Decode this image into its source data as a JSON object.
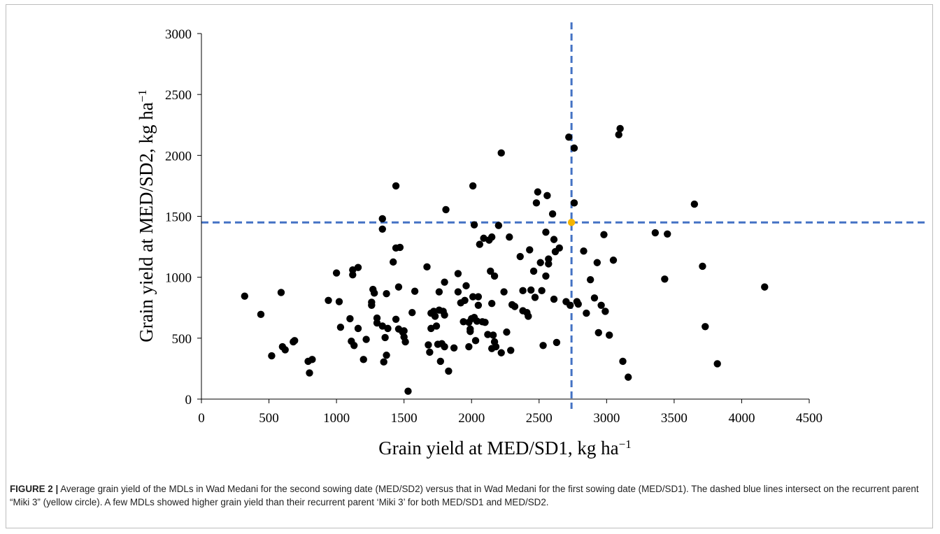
{
  "chart_data": {
    "type": "scatter",
    "xlabel_main": "Grain yield at MED/SD1, kg ha",
    "xlabel_sup": "−1",
    "ylabel_main": "Grain yield at MED/SD2, kg ha",
    "ylabel_sup": "−1",
    "xlim": [
      0,
      4500
    ],
    "ylim": [
      0,
      3000
    ],
    "xticks": [
      "0",
      "500",
      "1000",
      "1500",
      "2000",
      "2500",
      "3000",
      "3500",
      "4000",
      "4500"
    ],
    "yticks": [
      "0",
      "500",
      "1000",
      "1500",
      "2000",
      "2500",
      "3000"
    ],
    "grid": false,
    "reference_lines": {
      "x": 2740,
      "y": 1450,
      "color": "#4472c4",
      "style": "dashed"
    },
    "highlight_point": {
      "x": 2740,
      "y": 1450,
      "color": "#f4b400",
      "label": "Miki 3"
    },
    "marker_color": "#000000",
    "points": [
      [
        320,
        845
      ],
      [
        440,
        695
      ],
      [
        520,
        355
      ],
      [
        590,
        875
      ],
      [
        600,
        430
      ],
      [
        620,
        405
      ],
      [
        680,
        470
      ],
      [
        690,
        480
      ],
      [
        790,
        310
      ],
      [
        800,
        215
      ],
      [
        820,
        325
      ],
      [
        940,
        810
      ],
      [
        1000,
        1035
      ],
      [
        1020,
        800
      ],
      [
        1030,
        590
      ],
      [
        1100,
        660
      ],
      [
        1110,
        475
      ],
      [
        1120,
        1060
      ],
      [
        1120,
        1020
      ],
      [
        1130,
        440
      ],
      [
        1160,
        1080
      ],
      [
        1160,
        580
      ],
      [
        1200,
        325
      ],
      [
        1220,
        490
      ],
      [
        1260,
        770
      ],
      [
        1260,
        795
      ],
      [
        1270,
        900
      ],
      [
        1280,
        870
      ],
      [
        1300,
        665
      ],
      [
        1300,
        625
      ],
      [
        1340,
        600
      ],
      [
        1340,
        1395
      ],
      [
        1340,
        1480
      ],
      [
        1350,
        305
      ],
      [
        1360,
        505
      ],
      [
        1370,
        360
      ],
      [
        1370,
        865
      ],
      [
        1380,
        580
      ],
      [
        1420,
        1125
      ],
      [
        1440,
        1750
      ],
      [
        1440,
        1240
      ],
      [
        1440,
        655
      ],
      [
        1460,
        920
      ],
      [
        1460,
        575
      ],
      [
        1470,
        1245
      ],
      [
        1490,
        550
      ],
      [
        1500,
        560
      ],
      [
        1500,
        510
      ],
      [
        1510,
        470
      ],
      [
        1530,
        65
      ],
      [
        1560,
        710
      ],
      [
        1580,
        885
      ],
      [
        1670,
        1085
      ],
      [
        1680,
        445
      ],
      [
        1690,
        385
      ],
      [
        1700,
        705
      ],
      [
        1700,
        580
      ],
      [
        1720,
        720
      ],
      [
        1730,
        680
      ],
      [
        1740,
        600
      ],
      [
        1750,
        450
      ],
      [
        1760,
        880
      ],
      [
        1760,
        730
      ],
      [
        1770,
        310
      ],
      [
        1780,
        455
      ],
      [
        1790,
        720
      ],
      [
        1800,
        960
      ],
      [
        1800,
        690
      ],
      [
        1800,
        430
      ],
      [
        1810,
        1555
      ],
      [
        1830,
        230
      ],
      [
        1870,
        420
      ],
      [
        1900,
        1030
      ],
      [
        1900,
        880
      ],
      [
        1920,
        790
      ],
      [
        1940,
        635
      ],
      [
        1950,
        810
      ],
      [
        1960,
        930
      ],
      [
        1980,
        630
      ],
      [
        1980,
        430
      ],
      [
        1990,
        575
      ],
      [
        1990,
        555
      ],
      [
        2000,
        660
      ],
      [
        2010,
        1750
      ],
      [
        2010,
        840
      ],
      [
        2020,
        1430
      ],
      [
        2020,
        670
      ],
      [
        2030,
        480
      ],
      [
        2040,
        640
      ],
      [
        2050,
        840
      ],
      [
        2050,
        770
      ],
      [
        2060,
        1270
      ],
      [
        2080,
        635
      ],
      [
        2090,
        1320
      ],
      [
        2100,
        630
      ],
      [
        2120,
        530
      ],
      [
        2130,
        1305
      ],
      [
        2140,
        1050
      ],
      [
        2150,
        1330
      ],
      [
        2150,
        785
      ],
      [
        2150,
        415
      ],
      [
        2160,
        525
      ],
      [
        2170,
        1010
      ],
      [
        2170,
        470
      ],
      [
        2180,
        430
      ],
      [
        2200,
        1425
      ],
      [
        2220,
        2020
      ],
      [
        2220,
        380
      ],
      [
        2240,
        880
      ],
      [
        2260,
        550
      ],
      [
        2280,
        1330
      ],
      [
        2290,
        400
      ],
      [
        2300,
        775
      ],
      [
        2320,
        760
      ],
      [
        2360,
        1170
      ],
      [
        2380,
        890
      ],
      [
        2380,
        725
      ],
      [
        2410,
        710
      ],
      [
        2420,
        680
      ],
      [
        2430,
        1225
      ],
      [
        2440,
        895
      ],
      [
        2460,
        1050
      ],
      [
        2470,
        835
      ],
      [
        2480,
        1610
      ],
      [
        2490,
        1700
      ],
      [
        2510,
        1120
      ],
      [
        2520,
        890
      ],
      [
        2530,
        440
      ],
      [
        2550,
        1370
      ],
      [
        2550,
        1010
      ],
      [
        2560,
        1670
      ],
      [
        2570,
        1150
      ],
      [
        2570,
        1110
      ],
      [
        2600,
        1520
      ],
      [
        2610,
        1310
      ],
      [
        2610,
        820
      ],
      [
        2620,
        1210
      ],
      [
        2630,
        465
      ],
      [
        2650,
        1240
      ],
      [
        2700,
        800
      ],
      [
        2720,
        2150
      ],
      [
        2730,
        770
      ],
      [
        2760,
        2060
      ],
      [
        2760,
        1610
      ],
      [
        2780,
        800
      ],
      [
        2790,
        780
      ],
      [
        2830,
        1215
      ],
      [
        2850,
        705
      ],
      [
        2880,
        980
      ],
      [
        2910,
        830
      ],
      [
        2930,
        1120
      ],
      [
        2940,
        545
      ],
      [
        2960,
        770
      ],
      [
        2980,
        1350
      ],
      [
        2990,
        720
      ],
      [
        3020,
        525
      ],
      [
        3050,
        1140
      ],
      [
        3090,
        2170
      ],
      [
        3100,
        2220
      ],
      [
        3120,
        310
      ],
      [
        3160,
        180
      ],
      [
        3360,
        1365
      ],
      [
        3430,
        985
      ],
      [
        3450,
        1355
      ],
      [
        3650,
        1600
      ],
      [
        3710,
        1090
      ],
      [
        3730,
        595
      ],
      [
        3820,
        290
      ],
      [
        4170,
        920
      ]
    ]
  },
  "caption": {
    "label": "FIGURE 2  |",
    "text": " Average grain yield of the MDLs in Wad Medani for the second sowing date (MED/SD2) versus that in Wad Medani for the first sowing date (MED/SD1). The dashed blue lines intersect on the recurrent parent “Miki 3” (yellow circle). A few MDLs showed higher grain yield than their recurrent parent ‘Miki 3’ for both MED/SD1 and MED/SD2."
  }
}
